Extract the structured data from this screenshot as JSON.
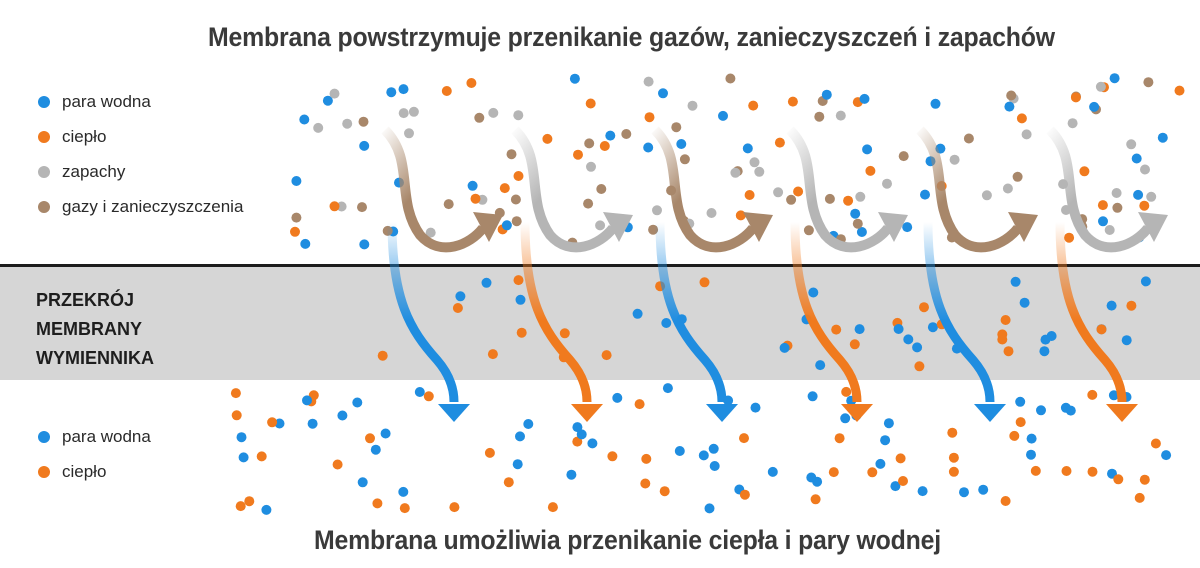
{
  "title_top": "Membrana powstrzymuje przenikanie gazów, zanieczyszczeń i zapachów",
  "title_bottom": "Membrana umożliwia przenikanie ciepła i pary wodnej",
  "membrane_label": [
    "PRZEKRÓJ",
    "MEMBRANY",
    "WYMIENNIKA"
  ],
  "colors": {
    "water_vapor": "#1f8de0",
    "heat": "#f07a1e",
    "odors": "#b5b5b5",
    "gases": "#a8876a",
    "membrane": "#d6d6d6",
    "membrane_edge": "#1c1c1c"
  },
  "legend_top": [
    {
      "label": "para wodna",
      "color": "#1f8de0"
    },
    {
      "label": "ciepło",
      "color": "#f07a1e"
    },
    {
      "label": "zapachy",
      "color": "#b5b5b5"
    },
    {
      "label": "gazy i zanieczyszczenia",
      "color": "#a8876a"
    }
  ],
  "legend_bottom": [
    {
      "label": "para wodna",
      "color": "#1f8de0"
    },
    {
      "label": "ciepło",
      "color": "#f07a1e"
    }
  ]
}
